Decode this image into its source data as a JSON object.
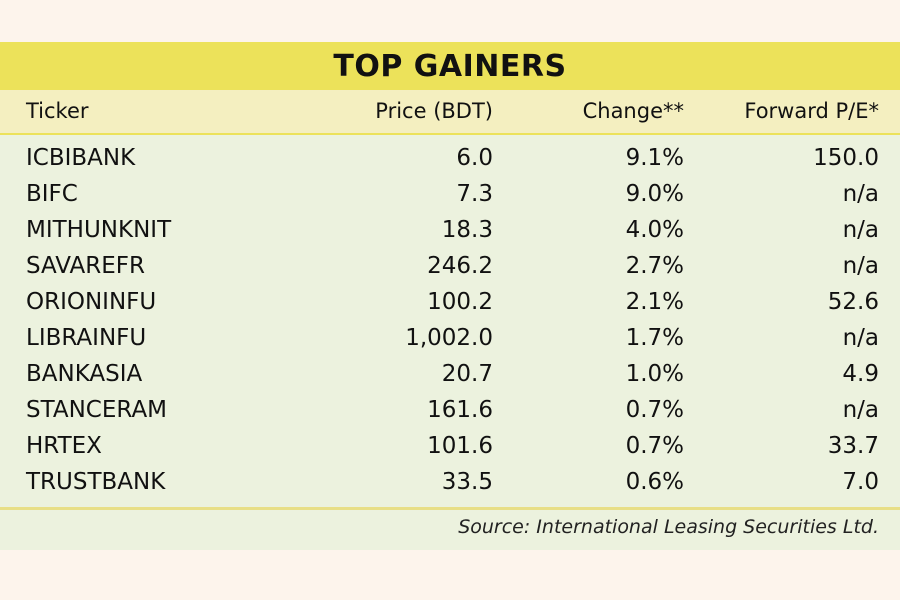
{
  "chart_data": {
    "type": "table",
    "title": "TOP GAINERS",
    "columns": [
      "Ticker",
      "Price (BDT)",
      "Change**",
      "Forward P/E*"
    ],
    "rows": [
      {
        "ticker": "ICBIBANK",
        "price": "6.0",
        "change": "9.1%",
        "pe": "150.0"
      },
      {
        "ticker": "BIFC",
        "price": "7.3",
        "change": "9.0%",
        "pe": "n/a"
      },
      {
        "ticker": "MITHUNKNIT",
        "price": "18.3",
        "change": "4.0%",
        "pe": "n/a"
      },
      {
        "ticker": "SAVAREFR",
        "price": "246.2",
        "change": "2.7%",
        "pe": "n/a"
      },
      {
        "ticker": "ORIONINFU",
        "price": "100.2",
        "change": "2.1%",
        "pe": "52.6"
      },
      {
        "ticker": "LIBRAINFU",
        "price": "1,002.0",
        "change": "1.7%",
        "pe": "n/a"
      },
      {
        "ticker": "BANKASIA",
        "price": "20.7",
        "change": "1.0%",
        "pe": "4.9"
      },
      {
        "ticker": "STANCERAM",
        "price": "161.6",
        "change": "0.7%",
        "pe": "n/a"
      },
      {
        "ticker": "HRTEX",
        "price": "101.6",
        "change": "0.7%",
        "pe": "33.7"
      },
      {
        "ticker": "TRUSTBANK",
        "price": "33.5",
        "change": "0.6%",
        "pe": "7.0"
      }
    ],
    "source": "Source: International Leasing Securities Ltd."
  },
  "colors": {
    "title_bar": "#ece25a",
    "header_bg": "#f4efc0",
    "body_bg": "#ecf2de",
    "page_bg": "#fdf4ec"
  }
}
